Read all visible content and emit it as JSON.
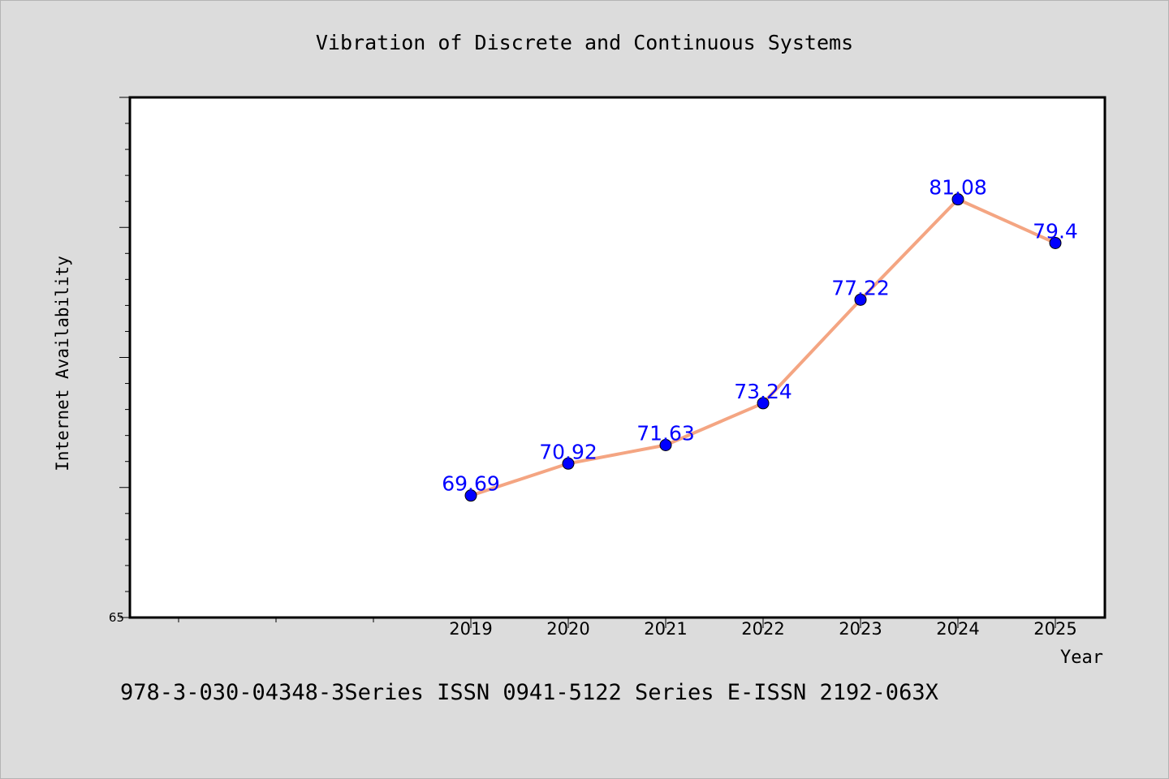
{
  "chart_data": {
    "type": "line",
    "title": "Vibration of Discrete and Continuous Systems",
    "xlabel": "Year",
    "ylabel": "Internet Availability",
    "categories": [
      "2019",
      "2020",
      "2021",
      "2022",
      "2023",
      "2024",
      "2025"
    ],
    "series": [
      {
        "values": [
          69.69,
          70.92,
          71.63,
          73.24,
          77.22,
          81.08,
          79.4
        ],
        "data_labels": [
          "69.69",
          "70.92",
          "71.63",
          "73.24",
          "77.22",
          "81.08",
          "79.4"
        ],
        "line_color": "#f4a582",
        "marker_color": "#0000ff"
      }
    ],
    "y_tick_labels": [
      "65"
    ],
    "ylim": [
      65,
      85
    ],
    "grid": false,
    "data_label_color": "#0000ff"
  },
  "footer": {
    "text": "978-3-030-04348-3Series ISSN 0941-5122 Series E-ISSN 2192-063X"
  }
}
